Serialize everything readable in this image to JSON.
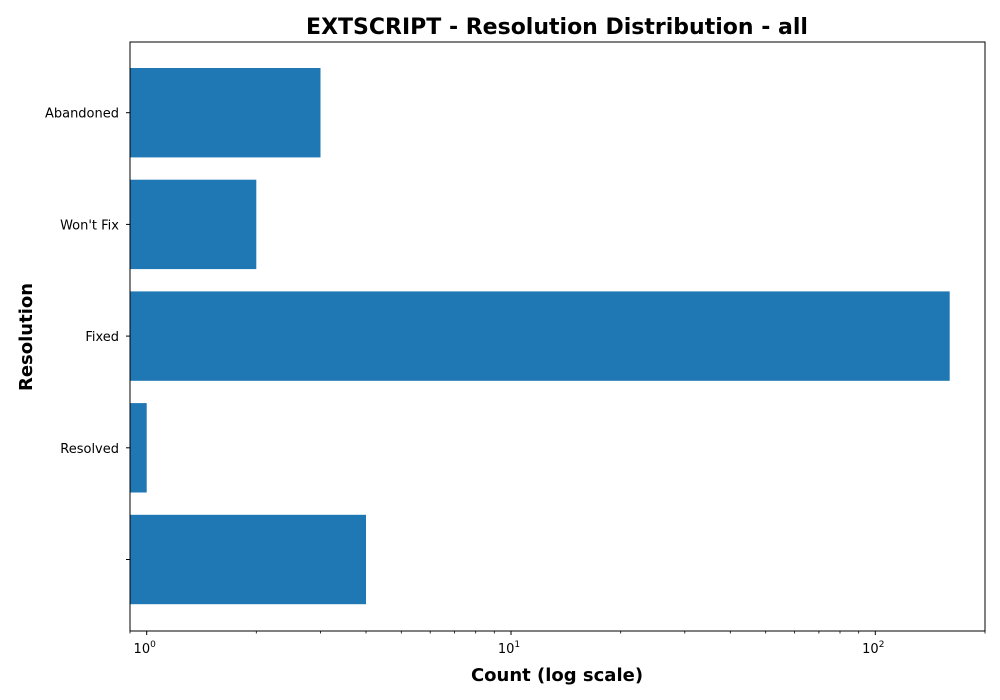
{
  "chart_data": {
    "type": "bar",
    "orientation": "horizontal",
    "title": "EXTSCRIPT - Resolution Distribution - all",
    "xlabel": "Count (log scale)",
    "ylabel": "Resolution",
    "x_scale": "log",
    "xlim": [
      0.9,
      200
    ],
    "x_ticks": [
      {
        "value": 1,
        "base": "10",
        "exp": "0"
      },
      {
        "value": 10,
        "base": "10",
        "exp": "1"
      },
      {
        "value": 100,
        "base": "10",
        "exp": "2"
      }
    ],
    "categories": [
      "",
      "Resolved",
      "Fixed",
      "Won't Fix",
      "Abandoned"
    ],
    "values": [
      4,
      1,
      160,
      2,
      3
    ],
    "bar_color": "#1f77b4",
    "grid": false,
    "legend": "none"
  }
}
